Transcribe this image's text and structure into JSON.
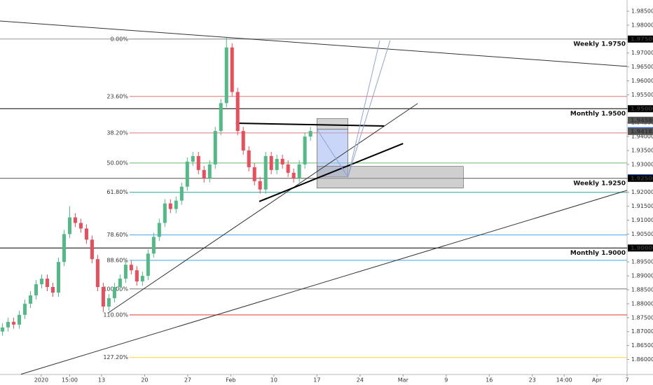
{
  "chart_data": {
    "type": "candlestick",
    "xlim": [
      -11.79,
      61
    ],
    "ylim": [
      1.8546,
      1.98902
    ],
    "xticks": [
      {
        "value": -7,
        "label": "2020"
      },
      {
        "value": -3.7,
        "label": "15:00"
      },
      {
        "value": 0,
        "label": "13"
      },
      {
        "value": 5,
        "label": "20"
      },
      {
        "value": 10,
        "label": "27"
      },
      {
        "value": 15,
        "label": "Feb"
      },
      {
        "value": 20,
        "label": "10"
      },
      {
        "value": 25,
        "label": "17"
      },
      {
        "value": 30,
        "label": "24"
      },
      {
        "value": 35,
        "label": "Mar"
      },
      {
        "value": 40,
        "label": "9"
      },
      {
        "value": 45,
        "label": "16"
      },
      {
        "value": 50,
        "label": "23"
      },
      {
        "value": 53.7,
        "label": "14:00"
      },
      {
        "value": 57.5,
        "label": "Apr"
      },
      {
        "value": 61,
        "label": "7"
      }
    ],
    "yticks": [
      {
        "value": 1.985,
        "label": "1.98500"
      },
      {
        "value": 1.98,
        "label": "1.98000"
      },
      {
        "value": 1.975,
        "label": "1.97500"
      },
      {
        "value": 1.97,
        "label": "1.97000"
      },
      {
        "value": 1.965,
        "label": "1.96500"
      },
      {
        "value": 1.96,
        "label": "1.96000"
      },
      {
        "value": 1.955,
        "label": "1.95500"
      },
      {
        "value": 1.95,
        "label": "1.95000"
      },
      {
        "value": 1.945,
        "label": "1.94500"
      },
      {
        "value": 1.94,
        "label": "1.94000"
      },
      {
        "value": 1.935,
        "label": "1.93500"
      },
      {
        "value": 1.93,
        "label": "1.93000"
      },
      {
        "value": 1.925,
        "label": "1.92500"
      },
      {
        "value": 1.92,
        "label": "1.92000"
      },
      {
        "value": 1.915,
        "label": "1.91500"
      },
      {
        "value": 1.91,
        "label": "1.91000"
      },
      {
        "value": 1.905,
        "label": "1.90500"
      },
      {
        "value": 1.9,
        "label": "1.90000"
      },
      {
        "value": 1.895,
        "label": "1.89500"
      },
      {
        "value": 1.89,
        "label": "1.89000"
      },
      {
        "value": 1.885,
        "label": "1.88500"
      },
      {
        "value": 1.88,
        "label": "1.88000"
      },
      {
        "value": 1.875,
        "label": "1.87500"
      },
      {
        "value": 1.87,
        "label": "1.87000"
      },
      {
        "value": 1.865,
        "label": "1.86500"
      },
      {
        "value": 1.86,
        "label": "1.86000"
      }
    ],
    "up_color": "#53b987",
    "down_color": "#eb4d5c",
    "candles": {
      "x": [
        -11.5,
        -10.85,
        -10.2,
        -9.55,
        -8.9,
        -8.25,
        -7.6,
        -6.95,
        -6.3,
        -5.65,
        -5,
        -4.35,
        -3.7,
        -3.05,
        -2.4,
        -1.75,
        -1.1,
        -0.45,
        0.2,
        0.85,
        1.5,
        2.15,
        2.8,
        3.45,
        4.1,
        4.75,
        5.4,
        6.05,
        6.7,
        7.35,
        8,
        8.65,
        9.3,
        9.95,
        10.6,
        11.25,
        11.9,
        12.55,
        13.2,
        13.85,
        14.5,
        15.15,
        15.8,
        16.45,
        17.1,
        17.75,
        18.4,
        19.05,
        19.7,
        20.35,
        21,
        21.65,
        22.3,
        22.95,
        23.6,
        24.25
      ],
      "open": [
        1.87,
        1.8715,
        1.8735,
        1.8725,
        1.876,
        1.88,
        1.883,
        1.887,
        1.889,
        1.886,
        1.884,
        1.895,
        1.905,
        1.911,
        1.909,
        1.907,
        1.903,
        1.896,
        1.886,
        1.879,
        1.882,
        1.886,
        1.889,
        1.894,
        1.892,
        1.888,
        1.89,
        1.898,
        1.904,
        1.909,
        1.916,
        1.914,
        1.917,
        1.922,
        1.931,
        1.933,
        1.928,
        1.925,
        1.93,
        1.942,
        1.952,
        1.972,
        1.956,
        1.942,
        1.935,
        1.929,
        1.924,
        1.921,
        1.933,
        1.928,
        1.932,
        1.93,
        1.927,
        1.925,
        1.93,
        1.94
      ],
      "high": [
        1.873,
        1.875,
        1.875,
        1.8775,
        1.8815,
        1.8845,
        1.8885,
        1.8905,
        1.8905,
        1.8875,
        1.8965,
        1.9065,
        1.915,
        1.9125,
        1.9105,
        1.9085,
        1.9045,
        1.8975,
        1.8875,
        1.8835,
        1.8875,
        1.8905,
        1.8955,
        1.8955,
        1.8935,
        1.8915,
        1.8995,
        1.9055,
        1.9105,
        1.9175,
        1.9175,
        1.9185,
        1.9235,
        1.9325,
        1.9345,
        1.9345,
        1.9295,
        1.9315,
        1.9435,
        1.9535,
        1.9755,
        1.9735,
        1.9575,
        1.9435,
        1.9365,
        1.9305,
        1.9255,
        1.9345,
        1.9345,
        1.9335,
        1.9335,
        1.9315,
        1.9285,
        1.9315,
        1.9415,
        1.9435
      ],
      "low": [
        1.8685,
        1.87,
        1.871,
        1.871,
        1.8745,
        1.8785,
        1.8815,
        1.8855,
        1.8845,
        1.8825,
        1.8825,
        1.8935,
        1.9035,
        1.9075,
        1.9055,
        1.9015,
        1.8945,
        1.8845,
        1.877,
        1.8775,
        1.8805,
        1.8845,
        1.8875,
        1.8905,
        1.8865,
        1.8865,
        1.8885,
        1.8965,
        1.9025,
        1.9075,
        1.9125,
        1.9125,
        1.9155,
        1.9205,
        1.9295,
        1.9265,
        1.9235,
        1.9235,
        1.9285,
        1.9405,
        1.9505,
        1.9545,
        1.9405,
        1.9335,
        1.9275,
        1.9225,
        1.9195,
        1.9195,
        1.9265,
        1.9265,
        1.9285,
        1.9255,
        1.9235,
        1.9235,
        1.9285,
        1.9385
      ],
      "close": [
        1.8715,
        1.8735,
        1.8725,
        1.876,
        1.88,
        1.883,
        1.887,
        1.889,
        1.886,
        1.884,
        1.895,
        1.905,
        1.911,
        1.909,
        1.907,
        1.903,
        1.896,
        1.886,
        1.879,
        1.882,
        1.886,
        1.889,
        1.894,
        1.892,
        1.888,
        1.89,
        1.898,
        1.904,
        1.909,
        1.916,
        1.914,
        1.917,
        1.922,
        1.931,
        1.933,
        1.928,
        1.925,
        1.93,
        1.942,
        1.952,
        1.972,
        1.956,
        1.942,
        1.935,
        1.929,
        1.924,
        1.921,
        1.933,
        1.928,
        1.932,
        1.93,
        1.927,
        1.925,
        1.93,
        1.94,
        1.942
      ]
    },
    "levels": [
      {
        "label": "Weekly 1.9750",
        "value": 1.975,
        "color": "#999999"
      },
      {
        "label": "Monthly 1.9500",
        "value": 1.95,
        "color": "#000000"
      },
      {
        "label": "Weekly 1.9250",
        "value": 1.925,
        "color": "#555555"
      },
      {
        "label": "Monthly 1.9000",
        "value": 1.9,
        "color": "#000000"
      }
    ],
    "fib_start_x": 3.25,
    "fib": [
      {
        "label": "0.00%",
        "value": 1.975,
        "color": "#999999"
      },
      {
        "label": "23.60%",
        "value": 1.9544,
        "color": "#e57373"
      },
      {
        "label": "38.20%",
        "value": 1.9413,
        "color": "#e57373"
      },
      {
        "label": "50.00%",
        "value": 1.9305,
        "color": "#66bb6a"
      },
      {
        "label": "61.80%",
        "value": 1.92,
        "color": "#26a69a"
      },
      {
        "label": "78.60%",
        "value": 1.9047,
        "color": "#42a5f5"
      },
      {
        "label": "88.60%",
        "value": 1.8956,
        "color": "#42a5f5"
      },
      {
        "label": "100.00%",
        "value": 1.8853,
        "color": "#777777"
      },
      {
        "label": "110.00%",
        "value": 1.876,
        "color": "#e53935"
      },
      {
        "label": "127.20%",
        "value": 1.8607,
        "color": "#fdd835"
      }
    ],
    "rects": [
      {
        "x": [
          25,
          28.6
        ],
        "y": [
          1.9465,
          1.9426
        ],
        "color": "#b0b0b0"
      },
      {
        "x": [
          25,
          28.6
        ],
        "y": [
          1.9426,
          1.9255
        ],
        "color": "#9fb4f0"
      },
      {
        "x": [
          25,
          42
        ],
        "y": [
          1.9293,
          1.9215
        ],
        "color": "#a8a8a8"
      }
    ],
    "drawings": [
      {
        "x": [
          -11.8,
          61
        ],
        "y": [
          1.9815,
          1.9652
        ],
        "color": "#333333",
        "width": 1
      },
      {
        "x": [
          0.81,
          36.7
        ],
        "y": [
          1.8768,
          1.9519
        ],
        "color": "#333333",
        "width": 1
      },
      {
        "x": [
          -9.35,
          61
        ],
        "y": [
          1.8547,
          1.9207
        ],
        "color": "#333333",
        "width": 1
      },
      {
        "x": [
          15.6,
          32.8
        ],
        "y": [
          1.9448,
          1.9438
        ],
        "color": "#000000",
        "width": 2
      },
      {
        "x": [
          18.3,
          35.0
        ],
        "y": [
          1.9167,
          1.9375
        ],
        "color": "#000000",
        "width": 2
      },
      {
        "x": [
          25,
          28.6,
          32.3
        ],
        "y": [
          1.9426,
          1.9255,
          1.9745
        ],
        "color": "#8fa3d6",
        "width": 1
      },
      {
        "x": [
          28.6,
          33.5
        ],
        "y": [
          1.9255,
          1.9745
        ],
        "color": "#8fa3d6",
        "width": 1
      }
    ],
    "price_tags": [
      {
        "value": 1.975,
        "label": "1.97500",
        "color": "#000000"
      },
      {
        "value": 1.95,
        "label": "1.95000",
        "color": "#000000"
      },
      {
        "value": 1.94586,
        "label": "1.94586",
        "color": "#555555"
      },
      {
        "value": 1.94211,
        "label": "1.94211",
        "color": "#2962ff"
      },
      {
        "value": 1.94183,
        "label": "1.94183",
        "color": "#555555"
      },
      {
        "value": 1.92523,
        "label": "1.92523",
        "color": "#2962ff"
      },
      {
        "value": 1.925,
        "label": "1.92500",
        "color": "#000000"
      },
      {
        "value": 1.9,
        "label": "1.90000",
        "color": "#000000"
      }
    ]
  }
}
